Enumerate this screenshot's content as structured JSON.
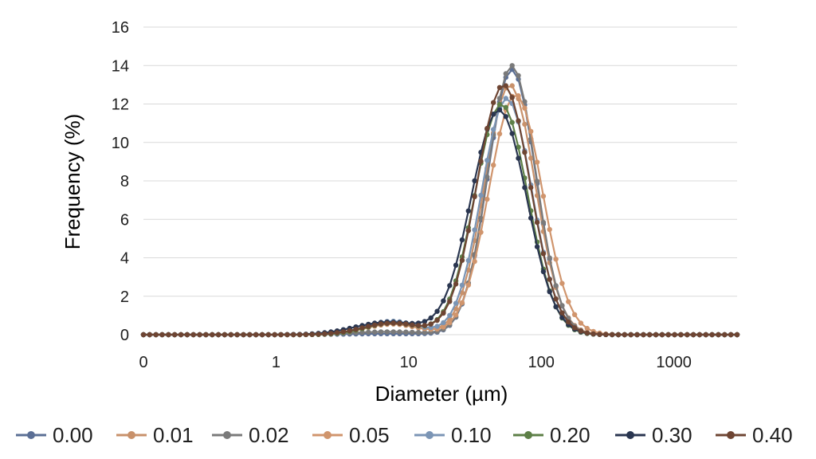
{
  "chart_data": {
    "type": "line",
    "title": "",
    "xlabel": "Diameter (µm)",
    "ylabel": "Frequency (%)",
    "x_scale": "log",
    "x_tick_labels": [
      "0",
      "1",
      "10",
      "100",
      "1000"
    ],
    "y_tick_labels": [
      "0",
      "2",
      "4",
      "6",
      "8",
      "10",
      "12",
      "14",
      "16"
    ],
    "ylim": [
      0,
      16
    ],
    "grid": "horizontal",
    "legend_position": "bottom",
    "series": [
      {
        "name": "0.00",
        "color": "#5b6f95",
        "peak_x": 60,
        "peak_y": 13.8,
        "width": 0.18,
        "minor_x": 7.5,
        "minor_y": 0.05,
        "minor_width": 0.35
      },
      {
        "name": "0.01",
        "color": "#c8916b",
        "peak_x": 58,
        "peak_y": 13.0,
        "width": 0.19,
        "minor_x": 7.5,
        "minor_y": 0.55,
        "minor_width": 0.2
      },
      {
        "name": "0.02",
        "color": "#7a7a7a",
        "peak_x": 60,
        "peak_y": 14.0,
        "width": 0.18,
        "minor_x": 7.0,
        "minor_y": 0.15,
        "minor_width": 0.3
      },
      {
        "name": "0.05",
        "color": "#d0956d",
        "peak_x": 64,
        "peak_y": 12.5,
        "width": 0.2,
        "minor_x": 7.5,
        "minor_y": 0.6,
        "minor_width": 0.2
      },
      {
        "name": "0.10",
        "color": "#7b95b5",
        "peak_x": 55,
        "peak_y": 12.3,
        "width": 0.19,
        "minor_x": 7.5,
        "minor_y": 0.7,
        "minor_width": 0.2
      },
      {
        "name": "0.20",
        "color": "#5d7f47",
        "peak_x": 50,
        "peak_y": 12.0,
        "width": 0.2,
        "minor_x": 7.5,
        "minor_y": 0.6,
        "minor_width": 0.2
      },
      {
        "name": "0.30",
        "color": "#2a3650",
        "peak_x": 48,
        "peak_y": 11.7,
        "width": 0.21,
        "minor_x": 7.0,
        "minor_y": 0.65,
        "minor_width": 0.25
      },
      {
        "name": "0.40",
        "color": "#6e4533",
        "peak_x": 52,
        "peak_y": 13.0,
        "width": 0.2,
        "minor_x": 7.5,
        "minor_y": 0.6,
        "minor_width": 0.22
      }
    ]
  }
}
